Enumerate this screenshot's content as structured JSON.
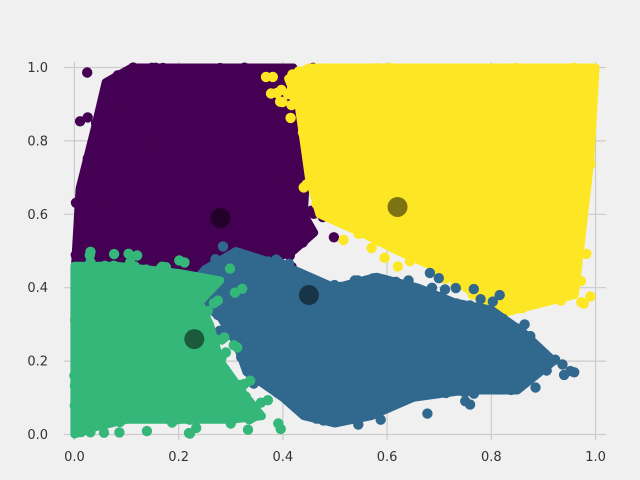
{
  "chart_data": {
    "type": "scatter",
    "title": "",
    "xlabel": "",
    "ylabel": "",
    "xlim": [
      -0.02,
      1.02
    ],
    "ylim": [
      -0.015,
      1.015
    ],
    "xticks": [
      "0.0",
      "0.2",
      "0.4",
      "0.6",
      "0.8",
      "1.0"
    ],
    "yticks": [
      "0.0",
      "0.2",
      "0.4",
      "0.6",
      "0.8",
      "1.0"
    ],
    "grid": true,
    "legend": "none",
    "clusters": [
      {
        "color": "#440154",
        "centroid": [
          0.28,
          0.59
        ],
        "region": [
          [
            0.0,
            0.43
          ],
          [
            0.01,
            0.67
          ],
          [
            0.04,
            0.84
          ],
          [
            0.06,
            0.96
          ],
          [
            0.11,
            1.0
          ],
          [
            0.42,
            1.0
          ],
          [
            0.44,
            0.9
          ],
          [
            0.45,
            0.82
          ],
          [
            0.44,
            0.6
          ],
          [
            0.46,
            0.55
          ],
          [
            0.42,
            0.5
          ],
          [
            0.37,
            0.47
          ],
          [
            0.3,
            0.42
          ],
          [
            0.2,
            0.44
          ],
          [
            0.1,
            0.44
          ],
          [
            0.04,
            0.44
          ]
        ]
      },
      {
        "color": "#fde725",
        "centroid": [
          0.62,
          0.62
        ],
        "region": [
          [
            0.41,
            0.97
          ],
          [
            0.45,
            1.0
          ],
          [
            0.75,
            1.0
          ],
          [
            1.0,
            1.0
          ],
          [
            0.99,
            0.75
          ],
          [
            0.97,
            0.5
          ],
          [
            0.96,
            0.38
          ],
          [
            0.82,
            0.33
          ],
          [
            0.77,
            0.38
          ],
          [
            0.7,
            0.45
          ],
          [
            0.62,
            0.5
          ],
          [
            0.55,
            0.55
          ],
          [
            0.47,
            0.6
          ],
          [
            0.45,
            0.7
          ],
          [
            0.43,
            0.9
          ]
        ]
      },
      {
        "color": "#31688e",
        "centroid": [
          0.45,
          0.38
        ],
        "region": [
          [
            0.31,
            0.5
          ],
          [
            0.42,
            0.45
          ],
          [
            0.5,
            0.4
          ],
          [
            0.58,
            0.43
          ],
          [
            0.66,
            0.4
          ],
          [
            0.73,
            0.36
          ],
          [
            0.8,
            0.34
          ],
          [
            0.86,
            0.28
          ],
          [
            0.92,
            0.2
          ],
          [
            0.85,
            0.12
          ],
          [
            0.75,
            0.12
          ],
          [
            0.65,
            0.1
          ],
          [
            0.57,
            0.05
          ],
          [
            0.5,
            0.03
          ],
          [
            0.44,
            0.05
          ],
          [
            0.4,
            0.1
          ],
          [
            0.33,
            0.17
          ],
          [
            0.31,
            0.25
          ],
          [
            0.28,
            0.32
          ],
          [
            0.24,
            0.36
          ],
          [
            0.22,
            0.4
          ],
          [
            0.25,
            0.45
          ]
        ]
      },
      {
        "color": "#35b779",
        "centroid": [
          0.23,
          0.26
        ],
        "region": [
          [
            0.0,
            0.0
          ],
          [
            0.0,
            0.46
          ],
          [
            0.08,
            0.46
          ],
          [
            0.14,
            0.45
          ],
          [
            0.2,
            0.44
          ],
          [
            0.28,
            0.42
          ],
          [
            0.24,
            0.36
          ],
          [
            0.26,
            0.3
          ],
          [
            0.28,
            0.2
          ],
          [
            0.32,
            0.12
          ],
          [
            0.36,
            0.05
          ],
          [
            0.3,
            0.04
          ],
          [
            0.2,
            0.04
          ],
          [
            0.1,
            0.04
          ],
          [
            0.04,
            0.02
          ]
        ]
      }
    ]
  }
}
